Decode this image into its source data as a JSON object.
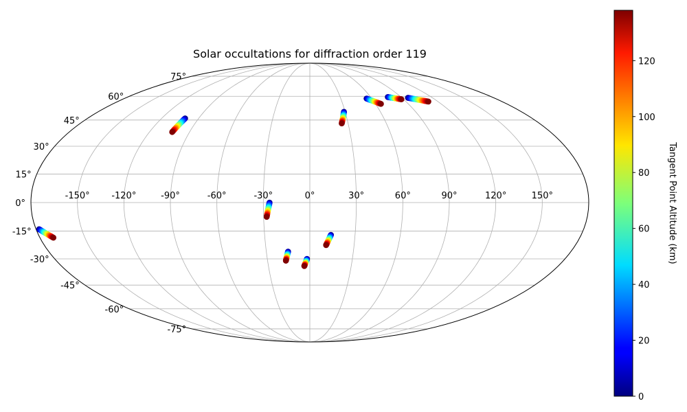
{
  "chart_data": {
    "type": "scatter",
    "projection": "mollweide",
    "title": "Solar occultations for diffraction order 119",
    "x_ticks": [
      "-150°",
      "-120°",
      "-90°",
      "-60°",
      "-30°",
      "0°",
      "30°",
      "60°",
      "90°",
      "120°",
      "150°"
    ],
    "x_tick_values": [
      -150,
      -120,
      -90,
      -60,
      -30,
      0,
      30,
      60,
      90,
      120,
      150
    ],
    "y_ticks": [
      "-75°",
      "-60°",
      "-45°",
      "-30°",
      "-15°",
      "0°",
      "15°",
      "30°",
      "45°",
      "60°",
      "75°"
    ],
    "y_tick_values": [
      -75,
      -60,
      -45,
      -30,
      -15,
      0,
      15,
      30,
      45,
      60,
      75
    ],
    "grid": true,
    "colormap": "jet",
    "colorbar": {
      "label": "Tangent Point Altitude (km)",
      "range": [
        0,
        138
      ],
      "ticks": [
        "0",
        "20",
        "40",
        "60",
        "80",
        "100",
        "120"
      ],
      "tick_values": [
        0,
        20,
        40,
        60,
        80,
        100,
        120
      ]
    },
    "series": [
      {
        "lon_low": -178,
        "lat_low": -14,
        "lon_high": -171,
        "lat_high": -18.5
      },
      {
        "lon_low": -101,
        "lat_low": 46,
        "lon_high": -103,
        "lat_high": 38
      },
      {
        "lon_low": -26,
        "lat_low": 0,
        "lon_high": -28,
        "lat_high": -7.5
      },
      {
        "lon_low": -15,
        "lat_low": -26,
        "lon_high": -17,
        "lat_high": -31
      },
      {
        "lon_low": -2,
        "lat_low": -30,
        "lon_high": -4,
        "lat_high": -34
      },
      {
        "lon_low": 14,
        "lat_low": -17,
        "lon_high": 11,
        "lat_high": -22.5
      },
      {
        "lon_low": 29,
        "lat_low": 50,
        "lon_high": 25,
        "lat_high": 43
      },
      {
        "lon_low": 55,
        "lat_low": 58.5,
        "lon_high": 65,
        "lat_high": 55
      },
      {
        "lon_low": 77,
        "lat_low": 59.5,
        "lon_high": 88,
        "lat_high": 58
      },
      {
        "lon_low": 96,
        "lat_low": 59,
        "lon_high": 111,
        "lat_high": 56.5
      }
    ]
  }
}
